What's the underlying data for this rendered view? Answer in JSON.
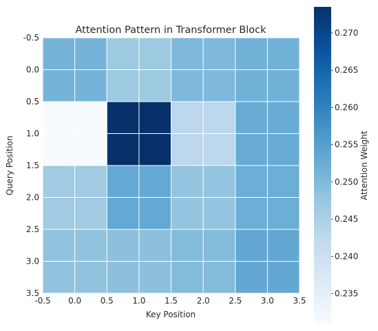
{
  "chart_data": {
    "type": "heatmap",
    "title": "Attention Pattern in Transformer Block",
    "xlabel": "Key Position",
    "ylabel": "Query Position",
    "xlim": [
      -0.5,
      3.5
    ],
    "ylim": [
      3.5,
      -0.5
    ],
    "x_ticks": [
      "-0.5",
      "0.0",
      "0.5",
      "1.0",
      "1.5",
      "2.0",
      "2.5",
      "3.0",
      "3.5"
    ],
    "y_ticks": [
      "-0.5",
      "0.0",
      "0.5",
      "1.0",
      "1.5",
      "2.0",
      "2.5",
      "3.0",
      "3.5"
    ],
    "rows": [
      [
        0.2512,
        0.2512,
        0.2469,
        0.2469,
        0.2503,
        0.2503,
        0.2515,
        0.2515
      ],
      [
        0.2512,
        0.2512,
        0.2469,
        0.2469,
        0.2503,
        0.2503,
        0.2515,
        0.2515
      ],
      [
        0.231,
        0.231,
        0.2735,
        0.2735,
        0.2428,
        0.2428,
        0.2527,
        0.2527
      ],
      [
        0.231,
        0.231,
        0.2735,
        0.2735,
        0.2428,
        0.2428,
        0.2527,
        0.2527
      ],
      [
        0.2465,
        0.2465,
        0.2532,
        0.2532,
        0.248,
        0.248,
        0.2523,
        0.2523
      ],
      [
        0.2465,
        0.2465,
        0.2532,
        0.2532,
        0.248,
        0.248,
        0.2523,
        0.2523
      ],
      [
        0.2482,
        0.2482,
        0.2488,
        0.2488,
        0.2497,
        0.2497,
        0.2533,
        0.2533
      ],
      [
        0.2482,
        0.2482,
        0.2488,
        0.2488,
        0.2497,
        0.2497,
        0.2533,
        0.2533
      ]
    ],
    "colormap": "Blues",
    "colorbar": {
      "label": "Attention Weight",
      "min": 0.231,
      "max": 0.2735,
      "ticks": [
        0.235,
        0.24,
        0.245,
        0.25,
        0.255,
        0.26,
        0.265,
        0.27
      ],
      "tick_labels": [
        "0.235",
        "0.240",
        "0.245",
        "0.250",
        "0.255",
        "0.260",
        "0.265",
        "0.270"
      ]
    },
    "grid": true,
    "colors": {
      "grid": "#ffffff",
      "text": "#262626",
      "blues": [
        "#f7fbff",
        "#deebf7",
        "#c6dbef",
        "#9ecae1",
        "#6baed6",
        "#4292c6",
        "#2171b5",
        "#08519c",
        "#08306b"
      ]
    }
  }
}
